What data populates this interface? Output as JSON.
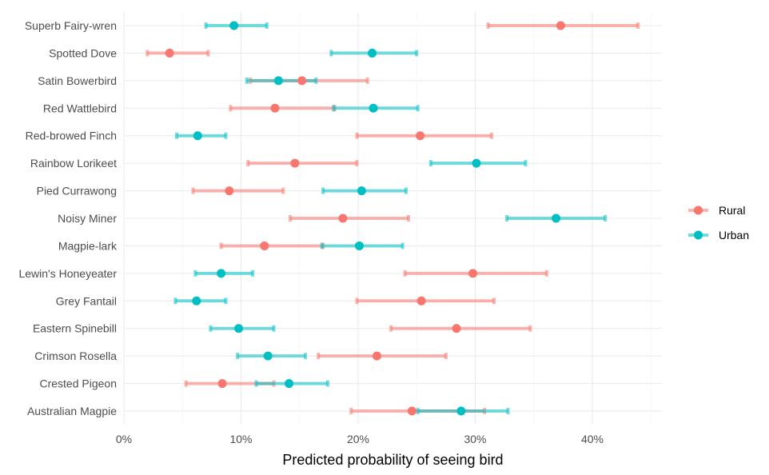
{
  "chart_data": {
    "type": "scatter",
    "subtype": "dot-and-errorbar",
    "orientation": "horizontal",
    "title": "",
    "xlabel": "Predicted probability of seeing bird",
    "ylabel": "",
    "xlim": [
      0,
      0.46
    ],
    "x_ticks": [
      0,
      0.1,
      0.2,
      0.3,
      0.4
    ],
    "x_tick_labels": [
      "0%",
      "10%",
      "20%",
      "30%",
      "40%"
    ],
    "grid": true,
    "legend_position": "right",
    "categories": [
      "Superb Fairy-wren",
      "Spotted Dove",
      "Satin Bowerbird",
      "Red Wattlebird",
      "Red-browed Finch",
      "Rainbow Lorikeet",
      "Pied Currawong",
      "Noisy Miner",
      "Magpie-lark",
      "Lewin's Honeyeater",
      "Grey Fantail",
      "Eastern Spinebill",
      "Crimson Rosella",
      "Crested Pigeon",
      "Australian Magpie"
    ],
    "series": [
      {
        "name": "Rural",
        "color": "#F8766D",
        "values": [
          0.373,
          0.039,
          0.152,
          0.129,
          0.253,
          0.146,
          0.09,
          0.187,
          0.12,
          0.298,
          0.254,
          0.284,
          0.216,
          0.084,
          0.246
        ],
        "lower": [
          0.311,
          0.02,
          0.108,
          0.091,
          0.199,
          0.106,
          0.059,
          0.142,
          0.083,
          0.24,
          0.199,
          0.228,
          0.166,
          0.053,
          0.194
        ],
        "upper": [
          0.439,
          0.072,
          0.208,
          0.18,
          0.314,
          0.199,
          0.136,
          0.243,
          0.17,
          0.361,
          0.316,
          0.347,
          0.275,
          0.128,
          0.308
        ]
      },
      {
        "name": "Urban",
        "color": "#00BFC4",
        "values": [
          0.094,
          0.212,
          0.132,
          0.213,
          0.063,
          0.301,
          0.203,
          0.369,
          0.201,
          0.083,
          0.062,
          0.098,
          0.123,
          0.141,
          0.288
        ],
        "lower": [
          0.07,
          0.177,
          0.105,
          0.179,
          0.045,
          0.262,
          0.17,
          0.327,
          0.169,
          0.061,
          0.044,
          0.074,
          0.097,
          0.113,
          0.251
        ],
        "upper": [
          0.122,
          0.25,
          0.164,
          0.251,
          0.087,
          0.343,
          0.241,
          0.411,
          0.238,
          0.11,
          0.087,
          0.128,
          0.155,
          0.174,
          0.328
        ]
      }
    ]
  }
}
